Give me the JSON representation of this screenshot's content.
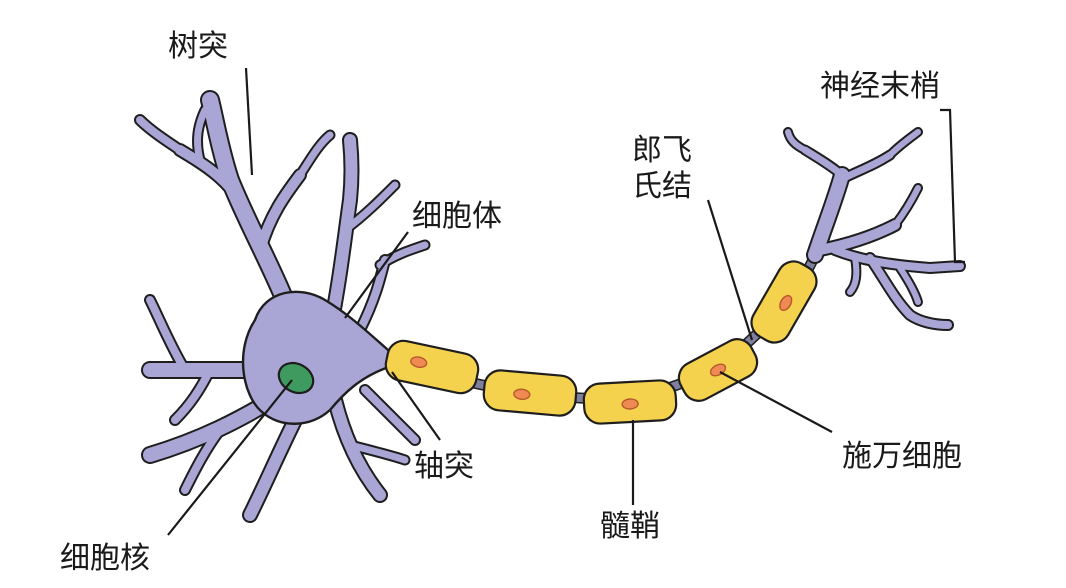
{
  "labels": {
    "dendrite": "树突",
    "cell_body": "细胞体",
    "nucleus": "细胞核",
    "axon": "轴突",
    "node_of_ranvier_line1": "郎飞",
    "node_of_ranvier_line2": "氏结",
    "myelin_sheath": "髓鞘",
    "schwann_cell": "施万细胞",
    "nerve_ending": "神经末梢"
  },
  "colors": {
    "neuron": "#a9a6d6",
    "schwann": "#f5d24e",
    "schwann_nucleus": "#ee8a52",
    "nucleus": "#3f9a5f",
    "background": "#ffffff"
  }
}
